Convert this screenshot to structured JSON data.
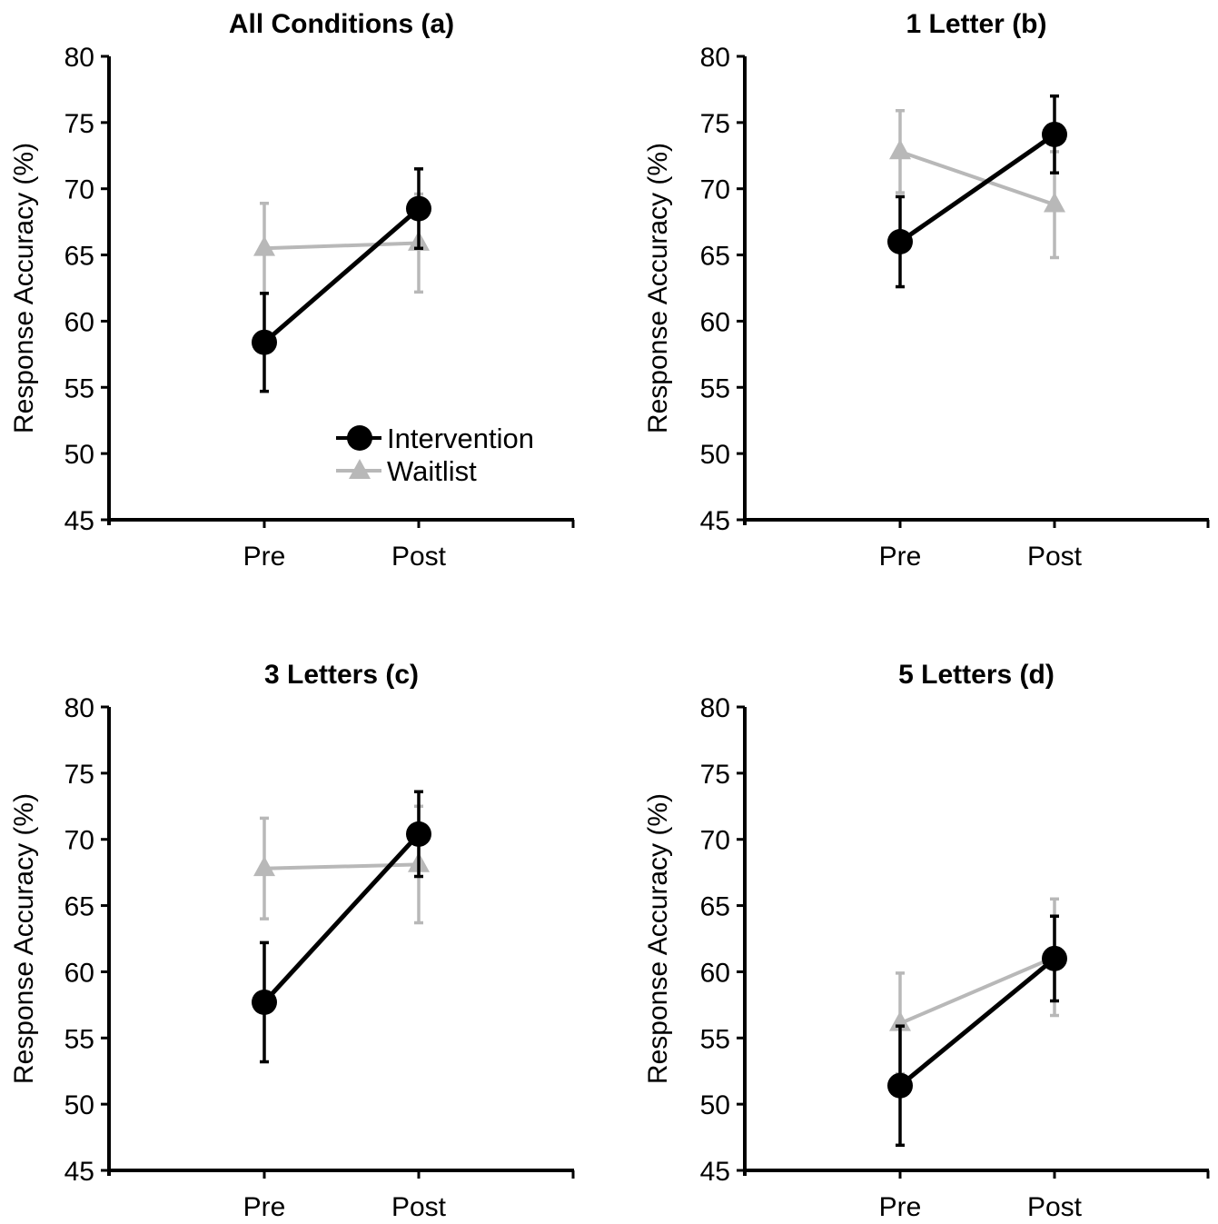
{
  "chart_data": [
    {
      "type": "line",
      "title": "All Conditions (a)",
      "xlabel": "",
      "ylabel": "Response Accuracy (%)",
      "categories": [
        "Pre",
        "Post"
      ],
      "ylim": [
        45,
        80
      ],
      "yticks": [
        45,
        50,
        55,
        60,
        65,
        70,
        75,
        80
      ],
      "grid": false,
      "legend": "inside-lower-right",
      "series": [
        {
          "name": "Intervention",
          "color": "#000000",
          "marker": "circle",
          "values": [
            58.4,
            68.5
          ],
          "error": [
            3.7,
            3.0
          ]
        },
        {
          "name": "Waitlist",
          "color": "#b8b8b8",
          "marker": "triangle",
          "values": [
            65.5,
            65.9
          ],
          "error": [
            3.4,
            3.7
          ]
        }
      ]
    },
    {
      "type": "line",
      "title": "1 Letter (b)",
      "xlabel": "",
      "ylabel": "Response Accuracy (%)",
      "categories": [
        "Pre",
        "Post"
      ],
      "ylim": [
        45,
        80
      ],
      "yticks": [
        45,
        50,
        55,
        60,
        65,
        70,
        75,
        80
      ],
      "grid": false,
      "series": [
        {
          "name": "Intervention",
          "color": "#000000",
          "marker": "circle",
          "values": [
            66.0,
            74.1
          ],
          "error": [
            3.4,
            2.9
          ]
        },
        {
          "name": "Waitlist",
          "color": "#b8b8b8",
          "marker": "triangle",
          "values": [
            72.8,
            68.8
          ],
          "error": [
            3.1,
            4.0
          ]
        }
      ]
    },
    {
      "type": "line",
      "title": "3 Letters (c)",
      "xlabel": "",
      "ylabel": "Response Accuracy (%)",
      "categories": [
        "Pre",
        "Post"
      ],
      "ylim": [
        45,
        80
      ],
      "yticks": [
        45,
        50,
        55,
        60,
        65,
        70,
        75,
        80
      ],
      "grid": false,
      "series": [
        {
          "name": "Intervention",
          "color": "#000000",
          "marker": "circle",
          "values": [
            57.7,
            70.4
          ],
          "error": [
            4.5,
            3.2
          ]
        },
        {
          "name": "Waitlist",
          "color": "#b8b8b8",
          "marker": "triangle",
          "values": [
            67.8,
            68.1
          ],
          "error": [
            3.8,
            4.4
          ]
        }
      ]
    },
    {
      "type": "line",
      "title": "5 Letters (d)",
      "xlabel": "",
      "ylabel": "Response Accuracy (%)",
      "categories": [
        "Pre",
        "Post"
      ],
      "ylim": [
        45,
        80
      ],
      "yticks": [
        45,
        50,
        55,
        60,
        65,
        70,
        75,
        80
      ],
      "grid": false,
      "series": [
        {
          "name": "Intervention",
          "color": "#000000",
          "marker": "circle",
          "values": [
            51.4,
            61.0
          ],
          "error": [
            4.5,
            3.2
          ]
        },
        {
          "name": "Waitlist",
          "color": "#b8b8b8",
          "marker": "triangle",
          "values": [
            56.1,
            61.1
          ],
          "error": [
            3.8,
            4.4
          ]
        }
      ]
    }
  ]
}
